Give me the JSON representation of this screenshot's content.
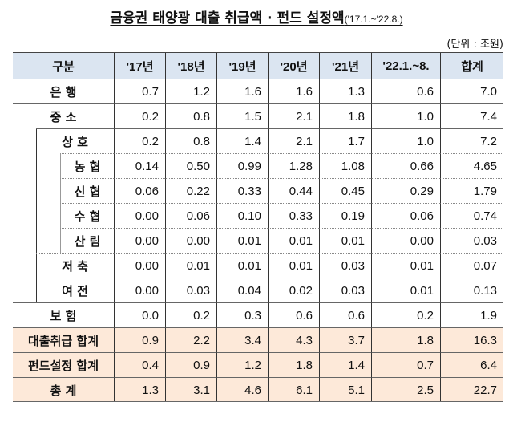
{
  "title": {
    "main": "금융권 태양광 대출 취급액 · 펀드 설정액",
    "period": "('17.1.~'22.8.)"
  },
  "unit": "(단위 : 조원)",
  "columns": [
    "구분",
    "'17년",
    "'18년",
    "'19년",
    "'20년",
    "'21년",
    "'22.1.~8.",
    "합계"
  ],
  "rows": [
    {
      "label": "은 행",
      "level": 0,
      "values": [
        "0.7",
        "1.2",
        "1.6",
        "1.6",
        "1.3",
        "0.6",
        "7.0"
      ]
    },
    {
      "label": "중 소",
      "level": 0,
      "values": [
        "0.2",
        "0.8",
        "1.5",
        "2.1",
        "1.8",
        "1.0",
        "7.4"
      ]
    },
    {
      "label": "상 호",
      "level": 1,
      "values": [
        "0.2",
        "0.8",
        "1.4",
        "2.1",
        "1.7",
        "1.0",
        "7.2"
      ]
    },
    {
      "label": "농 협",
      "level": 2,
      "values": [
        "0.14",
        "0.50",
        "0.99",
        "1.28",
        "1.08",
        "0.66",
        "4.65"
      ]
    },
    {
      "label": "신 협",
      "level": 2,
      "values": [
        "0.06",
        "0.22",
        "0.33",
        "0.44",
        "0.45",
        "0.29",
        "1.79"
      ]
    },
    {
      "label": "수 협",
      "level": 2,
      "values": [
        "0.00",
        "0.06",
        "0.10",
        "0.33",
        "0.19",
        "0.06",
        "0.74"
      ]
    },
    {
      "label": "산 림",
      "level": 2,
      "values": [
        "0.00",
        "0.00",
        "0.01",
        "0.01",
        "0.01",
        "0.00",
        "0.03"
      ]
    },
    {
      "label": "저 축",
      "level": 1,
      "values": [
        "0.00",
        "0.01",
        "0.01",
        "0.01",
        "0.03",
        "0.01",
        "0.07"
      ]
    },
    {
      "label": "여 전",
      "level": 1,
      "values": [
        "0.00",
        "0.03",
        "0.04",
        "0.02",
        "0.03",
        "0.01",
        "0.13"
      ]
    },
    {
      "label": "보 험",
      "level": 0,
      "values": [
        "0.0",
        "0.2",
        "0.3",
        "0.6",
        "0.6",
        "0.2",
        "1.9"
      ]
    },
    {
      "label": "대출취급 합계",
      "level": 0,
      "highlight": true,
      "values": [
        "0.9",
        "2.2",
        "3.4",
        "4.3",
        "3.7",
        "1.8",
        "16.3"
      ]
    },
    {
      "label": "펀드설정 합계",
      "level": 0,
      "highlight": true,
      "values": [
        "0.4",
        "0.9",
        "1.2",
        "1.8",
        "1.4",
        "0.7",
        "6.4"
      ]
    },
    {
      "label": "총 계",
      "level": 0,
      "highlight": true,
      "values": [
        "1.3",
        "3.1",
        "4.6",
        "6.1",
        "5.1",
        "2.5",
        "22.7"
      ]
    }
  ],
  "colors": {
    "header_bg": "#dbe5f1",
    "total_bg": "#fde9d9"
  }
}
